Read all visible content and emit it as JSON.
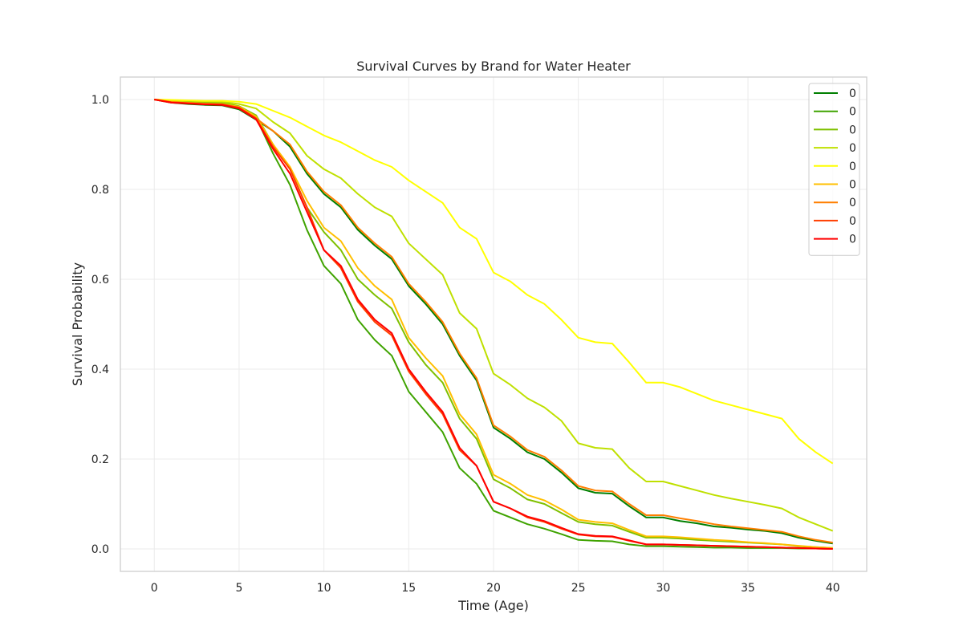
{
  "chart_data": {
    "type": "line",
    "title": "Survival Curves by Brand for Water Heater",
    "xlabel": "Time (Age)",
    "ylabel": "Survival Probability",
    "xlim": [
      -2.0,
      42.0
    ],
    "ylim": [
      -0.05,
      1.05
    ],
    "xticks": [
      0,
      5,
      10,
      15,
      20,
      25,
      30,
      35,
      40
    ],
    "yticks": [
      0.0,
      0.2,
      0.4,
      0.6,
      0.8,
      1.0
    ],
    "grid": true,
    "legend_position": "top-right",
    "x": [
      0,
      1,
      2,
      3,
      4,
      5,
      6,
      7,
      8,
      9,
      10,
      11,
      12,
      13,
      14,
      15,
      16,
      17,
      18,
      19,
      20,
      21,
      22,
      23,
      24,
      25,
      26,
      27,
      28,
      29,
      30,
      31,
      32,
      33,
      34,
      35,
      36,
      37,
      38,
      39,
      40
    ],
    "series": [
      {
        "name": "0",
        "color": "#007f00",
        "values": [
          1.0,
          0.993,
          0.99,
          0.988,
          0.987,
          0.978,
          0.955,
          0.93,
          0.895,
          0.835,
          0.79,
          0.76,
          0.71,
          0.675,
          0.645,
          0.585,
          0.545,
          0.5,
          0.43,
          0.375,
          0.27,
          0.245,
          0.215,
          0.2,
          0.17,
          0.135,
          0.125,
          0.123,
          0.095,
          0.07,
          0.07,
          0.062,
          0.057,
          0.05,
          0.047,
          0.043,
          0.04,
          0.035,
          0.025,
          0.018,
          0.012
        ]
      },
      {
        "name": "0",
        "color": "#3fa300",
        "values": [
          1.0,
          0.995,
          0.993,
          0.991,
          0.99,
          0.983,
          0.96,
          0.88,
          0.81,
          0.71,
          0.63,
          0.59,
          0.51,
          0.465,
          0.43,
          0.35,
          0.305,
          0.26,
          0.18,
          0.145,
          0.085,
          0.07,
          0.055,
          0.045,
          0.033,
          0.02,
          0.018,
          0.017,
          0.01,
          0.006,
          0.006,
          0.005,
          0.004,
          0.003,
          0.003,
          0.002,
          0.002,
          0.002,
          0.001,
          0.001,
          0.0
        ]
      },
      {
        "name": "0",
        "color": "#7fc000",
        "values": [
          1.0,
          0.996,
          0.995,
          0.994,
          0.993,
          0.985,
          0.965,
          0.9,
          0.845,
          0.76,
          0.705,
          0.665,
          0.6,
          0.565,
          0.535,
          0.46,
          0.41,
          0.37,
          0.29,
          0.245,
          0.155,
          0.135,
          0.11,
          0.1,
          0.08,
          0.06,
          0.055,
          0.052,
          0.038,
          0.025,
          0.025,
          0.023,
          0.02,
          0.018,
          0.016,
          0.014,
          0.012,
          0.01,
          0.006,
          0.004,
          0.002
        ]
      },
      {
        "name": "0",
        "color": "#bfe000",
        "values": [
          1.0,
          0.998,
          0.997,
          0.996,
          0.995,
          0.99,
          0.98,
          0.95,
          0.925,
          0.875,
          0.845,
          0.825,
          0.79,
          0.76,
          0.74,
          0.68,
          0.645,
          0.61,
          0.525,
          0.49,
          0.39,
          0.365,
          0.335,
          0.315,
          0.285,
          0.235,
          0.225,
          0.222,
          0.18,
          0.15,
          0.15,
          0.14,
          0.13,
          0.12,
          0.112,
          0.105,
          0.098,
          0.09,
          0.07,
          0.055,
          0.04
        ]
      },
      {
        "name": "0",
        "color": "#ffff00",
        "values": [
          1.0,
          0.999,
          0.998,
          0.997,
          0.997,
          0.995,
          0.99,
          0.975,
          0.96,
          0.94,
          0.92,
          0.905,
          0.885,
          0.865,
          0.85,
          0.82,
          0.795,
          0.77,
          0.715,
          0.69,
          0.615,
          0.595,
          0.565,
          0.545,
          0.51,
          0.47,
          0.46,
          0.457,
          0.415,
          0.37,
          0.37,
          0.36,
          0.345,
          0.33,
          0.32,
          0.31,
          0.3,
          0.29,
          0.245,
          0.215,
          0.19
        ]
      },
      {
        "name": "0",
        "color": "#ffbf00",
        "values": [
          1.0,
          0.995,
          0.993,
          0.991,
          0.99,
          0.984,
          0.962,
          0.9,
          0.85,
          0.775,
          0.715,
          0.685,
          0.625,
          0.585,
          0.555,
          0.47,
          0.425,
          0.385,
          0.3,
          0.255,
          0.165,
          0.145,
          0.12,
          0.108,
          0.088,
          0.065,
          0.06,
          0.057,
          0.042,
          0.028,
          0.028,
          0.026,
          0.023,
          0.02,
          0.018,
          0.015,
          0.013,
          0.01,
          0.007,
          0.004,
          0.002
        ]
      },
      {
        "name": "0",
        "color": "#ff7f00",
        "values": [
          1.0,
          0.994,
          0.992,
          0.99,
          0.989,
          0.982,
          0.958,
          0.93,
          0.9,
          0.84,
          0.795,
          0.765,
          0.715,
          0.68,
          0.65,
          0.59,
          0.55,
          0.505,
          0.435,
          0.38,
          0.275,
          0.25,
          0.22,
          0.205,
          0.175,
          0.14,
          0.13,
          0.128,
          0.1,
          0.075,
          0.075,
          0.068,
          0.062,
          0.055,
          0.05,
          0.046,
          0.042,
          0.038,
          0.028,
          0.02,
          0.014
        ]
      },
      {
        "name": "0",
        "color": "#ff3f00",
        "values": [
          1.0,
          0.994,
          0.992,
          0.99,
          0.989,
          0.982,
          0.958,
          0.895,
          0.845,
          0.76,
          0.665,
          0.625,
          0.55,
          0.505,
          0.475,
          0.395,
          0.345,
          0.3,
          0.22,
          0.185,
          0.105,
          0.09,
          0.07,
          0.06,
          0.045,
          0.032,
          0.028,
          0.027,
          0.018,
          0.01,
          0.01,
          0.009,
          0.008,
          0.007,
          0.006,
          0.005,
          0.004,
          0.003,
          0.002,
          0.001,
          0.0
        ]
      },
      {
        "name": "0",
        "color": "#ff0000",
        "values": [
          1.0,
          0.993,
          0.991,
          0.989,
          0.988,
          0.98,
          0.956,
          0.89,
          0.835,
          0.75,
          0.665,
          0.63,
          0.555,
          0.51,
          0.48,
          0.4,
          0.35,
          0.305,
          0.225,
          0.185,
          0.105,
          0.09,
          0.072,
          0.062,
          0.047,
          0.033,
          0.029,
          0.028,
          0.019,
          0.01,
          0.01,
          0.009,
          0.008,
          0.007,
          0.006,
          0.005,
          0.004,
          0.003,
          0.002,
          0.001,
          0.0
        ]
      }
    ]
  }
}
